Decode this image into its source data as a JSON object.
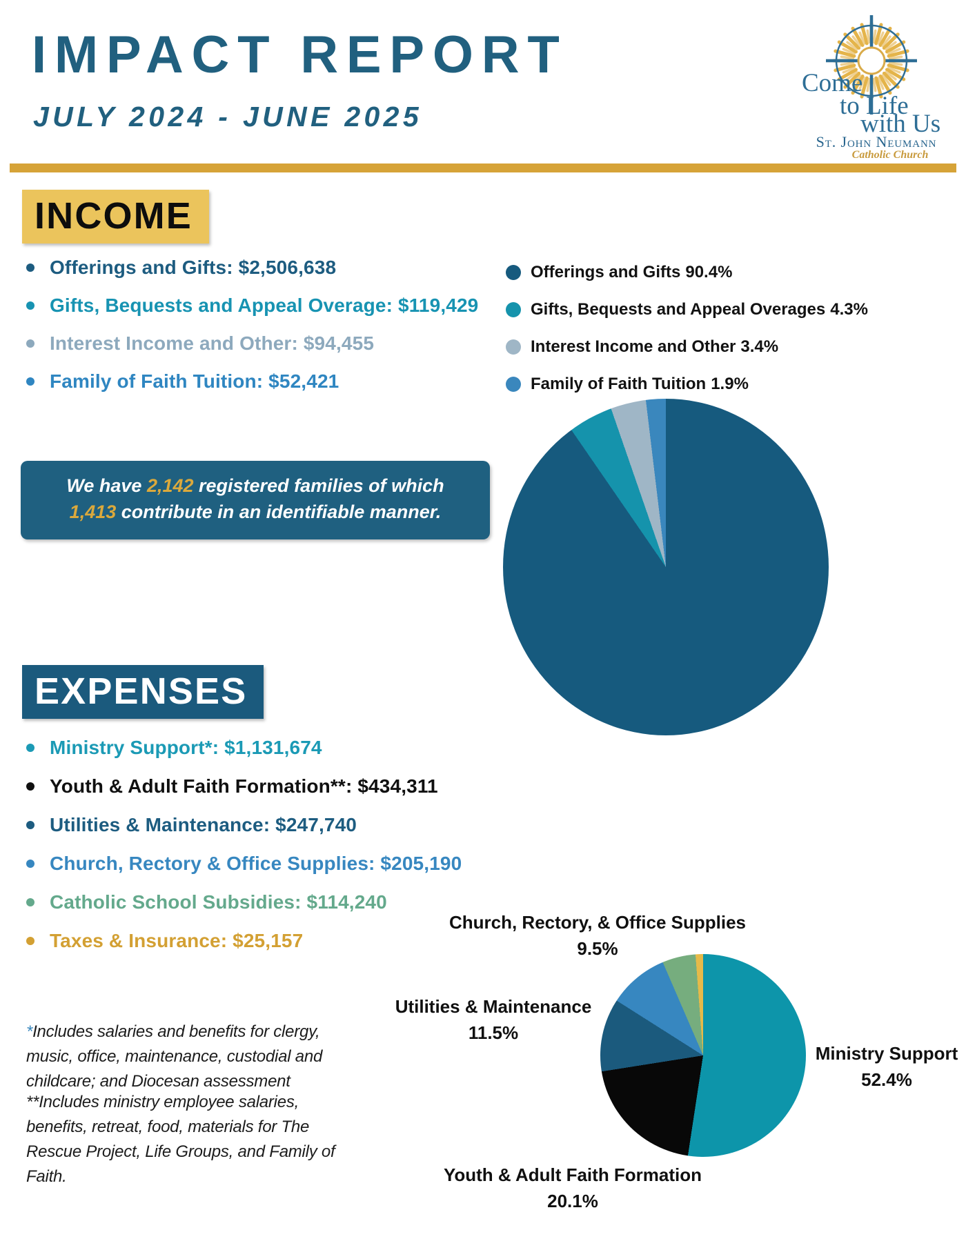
{
  "header": {
    "title": "IMPACT REPORT",
    "subtitle": "JULY 2024 - JUNE 2025",
    "logo": {
      "line1": "Come",
      "line2": "to Life",
      "line3": "with Us",
      "org": "St. John Neumann",
      "org_sub": "Catholic Church"
    }
  },
  "colors": {
    "brand_dark_blue": "#1d5c80",
    "teal": "#1593ac",
    "gray_blue": "#9fb6c6",
    "medium_blue": "#3787c0",
    "green": "#76ad7e",
    "gold": "#d6a338",
    "income_heading_bg": "#ebc45c",
    "expenses_heading_bg": "#1b5a7d",
    "note_box_bg": "#1f6080"
  },
  "income": {
    "heading": "INCOME",
    "items": [
      {
        "text": "Offerings and Gifts: $2,506,638",
        "color": "#1d5c80"
      },
      {
        "text": "Gifts, Bequests and Appeal Overage: $119,429",
        "color": "#1793b2"
      },
      {
        "text": "Interest Income and Other: $94,455",
        "color": "#8da9bd"
      },
      {
        "text": "Family of Faith Tuition: $52,421",
        "color": "#2f86c1"
      }
    ],
    "note_line1": [
      {
        "text": "We have ",
        "highlight": false
      },
      {
        "text": "2,142",
        "highlight": true
      },
      {
        "text": " registered families of which",
        "highlight": false
      }
    ],
    "note_line2": [
      {
        "text": "1,413",
        "highlight": true
      },
      {
        "text": " contribute in an identifiable manner.",
        "highlight": false
      }
    ]
  },
  "expenses": {
    "heading": "EXPENSES",
    "items": [
      {
        "text": "Ministry Support*: $1,131,674",
        "color": "#1b9ab5"
      },
      {
        "text": "Youth & Adult Faith Formation**: $434,311",
        "color": "#101010"
      },
      {
        "text": "Utilities & Maintenance: $247,740",
        "color": "#1d5c80"
      },
      {
        "text": "Church, Rectory & Office Supplies: $205,190",
        "color": "#3787c0"
      },
      {
        "text": "Catholic School Subsidies: $114,240",
        "color": "#64a98c"
      },
      {
        "text": "Taxes & Insurance: $25,157",
        "color": "#d3a033"
      }
    ],
    "footnotes": [
      {
        "stars": "*",
        "text": "Includes salaries and benefits for clergy, music, office, maintenance, custodial and childcare; and Diocesan assessment"
      },
      {
        "stars": "**",
        "text": "Includes ministry employee salaries, benefits, retreat, food, materials for The Rescue Project, Life Groups, and Family of Faith."
      }
    ]
  },
  "chart_data": [
    {
      "type": "pie",
      "title": "Income",
      "labels": [
        "Offerings and Gifts",
        "Gifts, Bequests and Appeal Overages",
        "Interest Income and Other",
        "Family of Faith Tuition"
      ],
      "values_pct": [
        90.4,
        4.3,
        3.4,
        1.9
      ],
      "values_usd": [
        2506638,
        119429,
        94455,
        52421
      ],
      "colors": [
        "#165a7e",
        "#1593ac",
        "#9fb6c6",
        "#3a87bd"
      ],
      "legend_position": "above-right",
      "legend": [
        {
          "label": "Offerings and Gifts",
          "pct": "90.4%",
          "color": "#165a7e"
        },
        {
          "label": "Gifts, Bequests and Appeal Overages",
          "pct": "4.3%",
          "color": "#1593ac"
        },
        {
          "label": "Interest Income and Other",
          "pct": "3.4%",
          "color": "#9fb6c6"
        },
        {
          "label": "Family of Faith Tuition",
          "pct": "1.9%",
          "color": "#3a87bd"
        }
      ]
    },
    {
      "type": "pie",
      "title": "Expenses",
      "labels": [
        "Ministry Support",
        "Youth & Adult Faith Formation",
        "Utilities & Maintenance",
        "Church, Rectory, & Office Supplies",
        "Catholic School Subsidies",
        "Taxes & Insurance"
      ],
      "values_pct": [
        52.4,
        20.1,
        11.5,
        9.5,
        5.3,
        1.2
      ],
      "values_usd": [
        1131674,
        434311,
        247740,
        205190,
        114240,
        25157
      ],
      "colors": [
        "#0d95aa",
        "#080808",
        "#1b5a7d",
        "#3787c0",
        "#76ad7e",
        "#e6ba49"
      ],
      "legend_position": "callouts",
      "callouts": [
        {
          "line1": "Church, Rectory, & Office Supplies",
          "line2": "9.5%"
        },
        {
          "line1": "Utilities & Maintenance",
          "line2": "11.5%"
        },
        {
          "line1": "Ministry Support",
          "line2": "52.4%"
        },
        {
          "line1": "Youth & Adult Faith Formation",
          "line2": "20.1%"
        }
      ]
    }
  ]
}
